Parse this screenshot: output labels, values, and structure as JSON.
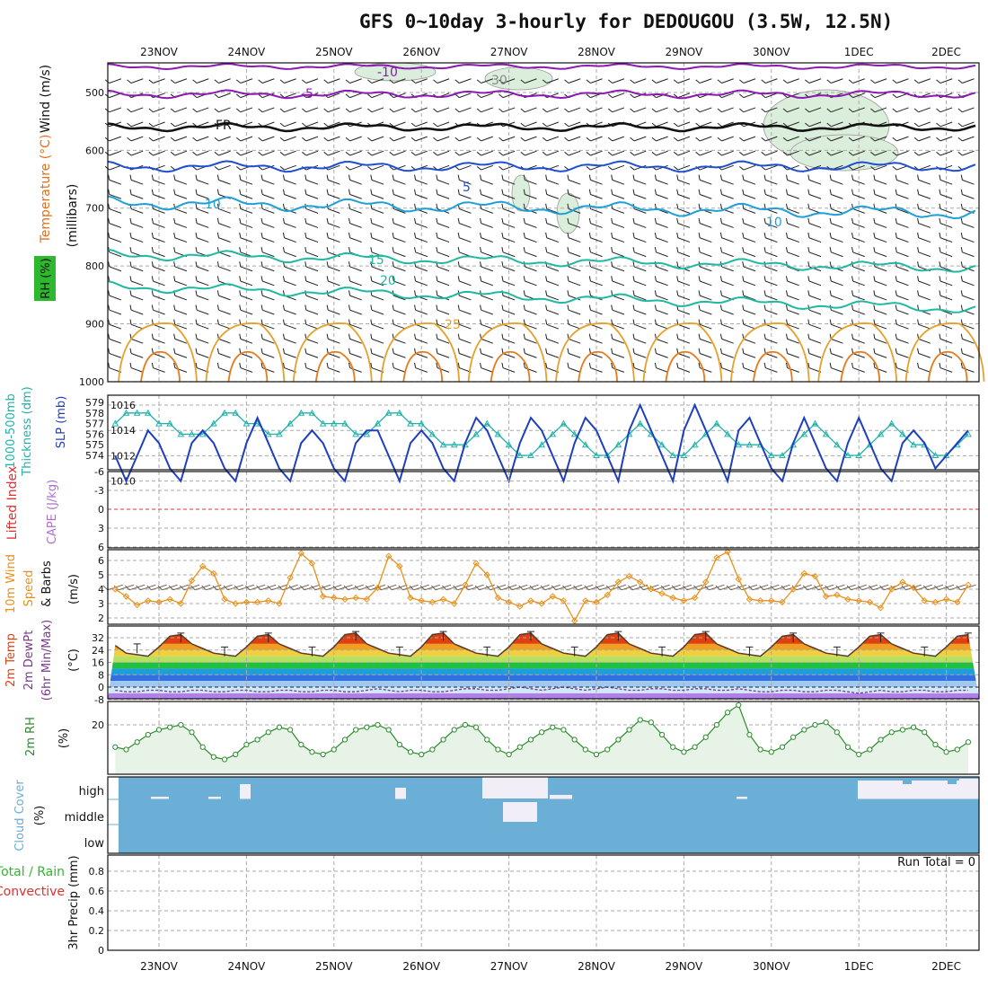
{
  "header": {
    "title": "GFS 0~10day 3-hourly for DEDOUGOU (3.5W, 12.5N)"
  },
  "dates": [
    "23NOV",
    "24NOV",
    "25NOV",
    "26NOV",
    "27NOV",
    "28NOV",
    "29NOV",
    "30NOV",
    "1DEC",
    "2DEC"
  ],
  "colors": {
    "rh_green": "#2db82d",
    "sky_blue": "#6baed6",
    "cloud_white": "#f2eef7",
    "temp_purple": "#8a2be2",
    "slp_blue": "#1f3fbf",
    "thick_cyan": "#20b2aa",
    "wind_orange": "#e8901a",
    "rh_line": "#2e8b2e",
    "red": "#e03030",
    "pink_magenta": "#c0208c"
  },
  "panels": {
    "profile": {
      "labels": [
        "Wind (m/s)",
        "Temperature (°C)",
        "RH (%)",
        "(millibars)"
      ],
      "y_ticks": [
        "500",
        "600",
        "700",
        "800",
        "900",
        "1000"
      ],
      "contour_labels": [
        "-10",
        "-5",
        "FR",
        "5",
        "10",
        "15",
        "20",
        "25",
        "10",
        "30"
      ]
    },
    "slp": {
      "labels": [
        "1000-500mb",
        "Thickness (dm)",
        "SLP (mb)"
      ],
      "left_ticks": [
        "579",
        "578",
        "577",
        "576",
        "575",
        "574"
      ],
      "right_ticks": [
        "1016",
        "1014",
        "1012",
        "1010"
      ]
    },
    "stability": {
      "labels": [
        "Lifted Index",
        "CAPE (J/kg)"
      ],
      "left_ticks": [
        "-6",
        "-3",
        "0",
        "3",
        "6"
      ]
    },
    "wind10": {
      "labels": [
        "10m Wind",
        "Speed",
        "& Barbs",
        "(m/s)"
      ],
      "ticks": [
        "6",
        "5",
        "4",
        "3",
        "2"
      ]
    },
    "temp2m": {
      "labels": [
        "2m Temp",
        "2m DewPt",
        "(6hr Min/Max)",
        "(°C)"
      ],
      "ticks": [
        "32",
        "24",
        "16",
        "8",
        "0",
        "-8"
      ]
    },
    "rh2m": {
      "labels": [
        "2m RH",
        "(%)"
      ],
      "ticks": [
        "20"
      ]
    },
    "cloud": {
      "labels": [
        "Cloud Cover",
        "(%)"
      ],
      "levels": [
        "high",
        "middle",
        "low"
      ]
    },
    "precip": {
      "labels": [
        "Total / Rain",
        "Convective",
        "3hr Precip (mm)"
      ],
      "ticks": [
        "0.8",
        "0.6",
        "0.4",
        "0.2",
        "0"
      ],
      "run_total": "Run Total = 0"
    }
  },
  "chart_data": [
    {
      "type": "line",
      "title": "1000-500mb Thickness (dm)",
      "x": "3-hourly steps 22NOV 12Z to 2DEC 06Z",
      "series": [
        {
          "name": "1000-500mb Thickness (dm)",
          "values": [
            577,
            578,
            578,
            578,
            577,
            577,
            576,
            576,
            576,
            577,
            578,
            578,
            577,
            577,
            576,
            576,
            577,
            578,
            578,
            577,
            577,
            577,
            576,
            576,
            577,
            578,
            578,
            577,
            577,
            576,
            575,
            575,
            575,
            576,
            577,
            576,
            575,
            574,
            574,
            575,
            576,
            577,
            576,
            575,
            574,
            574,
            575,
            576,
            577,
            576,
            575,
            574,
            574,
            575,
            576,
            577,
            576,
            575,
            575,
            575,
            574,
            574,
            575,
            576,
            577,
            576,
            575,
            574,
            574,
            575,
            576,
            577,
            576,
            575,
            575,
            574,
            574,
            575,
            576,
            577,
            576,
            575,
            575,
            574
          ]
        }
      ],
      "ylim": [
        574,
        579
      ]
    },
    {
      "type": "line",
      "title": "SLP (mb)",
      "x": "3-hourly steps",
      "series": [
        {
          "name": "SLP (mb)",
          "values": [
            1012,
            1010,
            1012,
            1014,
            1013,
            1011,
            1010,
            1013,
            1014,
            1013,
            1011,
            1010,
            1013,
            1015,
            1013,
            1011,
            1010,
            1013,
            1014,
            1013,
            1011,
            1010,
            1013,
            1014,
            1014,
            1012,
            1010,
            1013,
            1014,
            1013,
            1011,
            1010,
            1013,
            1015,
            1014,
            1012,
            1010,
            1013,
            1015,
            1014,
            1012,
            1010,
            1013,
            1015,
            1014,
            1012,
            1010,
            1014,
            1016,
            1014,
            1012,
            1010,
            1014,
            1016,
            1014,
            1012,
            1010,
            1014,
            1015,
            1013,
            1011,
            1010,
            1013,
            1015,
            1013,
            1011,
            1010,
            1013,
            1015,
            1013,
            1011,
            1010,
            1013,
            1014,
            1013,
            1011,
            1012,
            1013,
            1014,
            1013,
            1011,
            1012,
            1013,
            1012
          ]
        }
      ],
      "ylim": [
        1009,
        1017
      ]
    },
    {
      "type": "line",
      "title": "10m Wind Speed (m/s)",
      "x": "3-hourly steps",
      "series": [
        {
          "name": "10m Wind Speed",
          "values": [
            4.0,
            3.5,
            2.9,
            3.2,
            3.1,
            3.3,
            3.0,
            4.6,
            5.6,
            5.1,
            3.3,
            3.0,
            3.1,
            3.1,
            3.2,
            3.0,
            4.8,
            6.5,
            5.8,
            3.5,
            3.4,
            3.3,
            3.4,
            3.3,
            4.1,
            6.3,
            5.6,
            3.4,
            3.2,
            3.1,
            3.3,
            3.0,
            4.3,
            5.8,
            5.0,
            3.4,
            3.1,
            2.8,
            3.2,
            3.0,
            3.5,
            3.2,
            1.8,
            3.2,
            3.1,
            3.6,
            4.5,
            4.9,
            4.5,
            4.0,
            3.7,
            3.4,
            3.2,
            3.4,
            4.5,
            6.2,
            6.6,
            4.7,
            3.3,
            3.2,
            3.2,
            3.1,
            4.0,
            5.1,
            4.9,
            3.5,
            3.6,
            3.3,
            3.2,
            3.1,
            2.7,
            4.0,
            4.5,
            4.1,
            3.2,
            3.1,
            3.3,
            3.1,
            4.3,
            5.0,
            3.8,
            3.5,
            3.1,
            3.2,
            3.1,
            3.0,
            3.4
          ]
        }
      ],
      "ylim": [
        1.5,
        6.8
      ]
    },
    {
      "type": "area",
      "title": "2m Temp / 2m DewPt (°C)",
      "x": "3-hourly steps",
      "series": [
        {
          "name": "2m Temp",
          "values": [
            27,
            22,
            21,
            20,
            26,
            33,
            34,
            28,
            25,
            22,
            21,
            20,
            26,
            33,
            34,
            28,
            25,
            22,
            21,
            20,
            26,
            34,
            35,
            28,
            25,
            22,
            21,
            20,
            26,
            34,
            35,
            28,
            25,
            22,
            21,
            20,
            26,
            34,
            35,
            28,
            25,
            22,
            21,
            20,
            26,
            34,
            35,
            28,
            25,
            22,
            21,
            20,
            26,
            34,
            35,
            28,
            25,
            22,
            21,
            20,
            26,
            33,
            34,
            28,
            25,
            22,
            21,
            20,
            26,
            33,
            34,
            28,
            25,
            22,
            21,
            20,
            26,
            33,
            34,
            28,
            25,
            22,
            21,
            20
          ]
        },
        {
          "name": "2m DewPt",
          "values": [
            -2,
            -3,
            -3,
            -2,
            -2,
            -3,
            -3,
            -2,
            -2,
            -3,
            -3,
            -2,
            -2,
            -3,
            -3,
            -2,
            -2,
            -3,
            -3,
            -2,
            -2,
            -3,
            -3,
            -2,
            -1,
            -2,
            -3,
            -2,
            -2,
            -3,
            -3,
            -2,
            -1,
            -1,
            -2,
            -2,
            -1,
            0,
            -1,
            -2,
            -1,
            0,
            -1,
            -2,
            -1,
            0,
            -1,
            -2,
            -2,
            -1,
            -1,
            -2,
            -2,
            -1,
            -1,
            -2,
            -2,
            -1,
            -2,
            -3,
            -3,
            -2,
            -2,
            -3,
            -3,
            -2,
            -2,
            -3,
            -4,
            -3,
            -2,
            -3,
            -3,
            -2,
            -2,
            -3,
            -3,
            -2,
            -2,
            -3,
            -3,
            -2,
            -2,
            -3
          ]
        }
      ],
      "ylim": [
        -8,
        36
      ]
    },
    {
      "type": "area",
      "title": "2m RH (%)",
      "x": "3-hourly steps",
      "series": [
        {
          "name": "2m RH",
          "values": [
            11,
            10,
            13,
            16,
            18,
            19,
            20,
            17,
            11,
            7,
            6,
            8,
            12,
            14,
            17,
            19,
            18,
            12,
            9,
            8,
            10,
            14,
            18,
            19,
            20,
            18,
            12,
            9,
            8,
            10,
            14,
            18,
            20,
            19,
            14,
            10,
            8,
            11,
            14,
            17,
            19,
            18,
            14,
            10,
            8,
            10,
            14,
            18,
            22,
            21,
            16,
            11,
            9,
            11,
            15,
            20,
            25,
            28,
            16,
            10,
            9,
            11,
            15,
            18,
            20,
            21,
            17,
            11,
            8,
            10,
            14,
            17,
            18,
            19,
            17,
            12,
            9,
            10,
            13,
            15,
            16,
            16,
            14,
            10,
            11,
            13,
            15,
            17,
            18,
            19
          ]
        }
      ],
      "ylim": [
        0,
        40
      ]
    },
    {
      "type": "bar",
      "title": "3hr Precip (mm)",
      "x": "3-hourly steps",
      "series": [
        {
          "name": "Total / Rain",
          "values": []
        }
      ],
      "ylim": [
        0,
        1
      ]
    }
  ]
}
